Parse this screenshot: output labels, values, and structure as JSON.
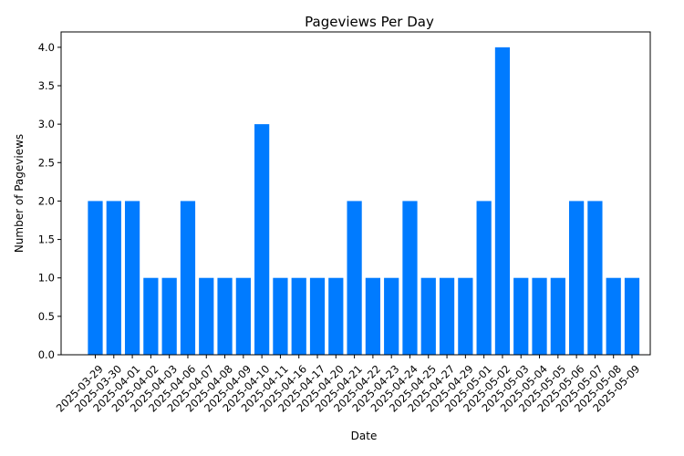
{
  "chart_data": {
    "type": "bar",
    "title": "Pageviews Per Day",
    "xlabel": "Date",
    "ylabel": "Number of Pageviews",
    "ylim": [
      0,
      4.2
    ],
    "yticks": [
      "0.0",
      "0.5",
      "1.0",
      "1.5",
      "2.0",
      "2.5",
      "3.0",
      "3.5",
      "4.0"
    ],
    "grid": false,
    "bar_color": "#007bff",
    "categories": [
      "2025-03-29",
      "2025-03-30",
      "2025-04-01",
      "2025-04-02",
      "2025-04-03",
      "2025-04-06",
      "2025-04-07",
      "2025-04-08",
      "2025-04-09",
      "2025-04-10",
      "2025-04-11",
      "2025-04-16",
      "2025-04-17",
      "2025-04-20",
      "2025-04-21",
      "2025-04-22",
      "2025-04-23",
      "2025-04-24",
      "2025-04-25",
      "2025-04-27",
      "2025-04-29",
      "2025-05-01",
      "2025-05-02",
      "2025-05-03",
      "2025-05-04",
      "2025-05-05",
      "2025-05-06",
      "2025-05-07",
      "2025-05-08",
      "2025-05-09"
    ],
    "values": [
      2,
      2,
      2,
      1,
      1,
      2,
      1,
      1,
      1,
      3,
      1,
      1,
      1,
      1,
      2,
      1,
      1,
      2,
      1,
      1,
      1,
      2,
      4,
      1,
      1,
      1,
      2,
      2,
      1,
      1
    ]
  }
}
